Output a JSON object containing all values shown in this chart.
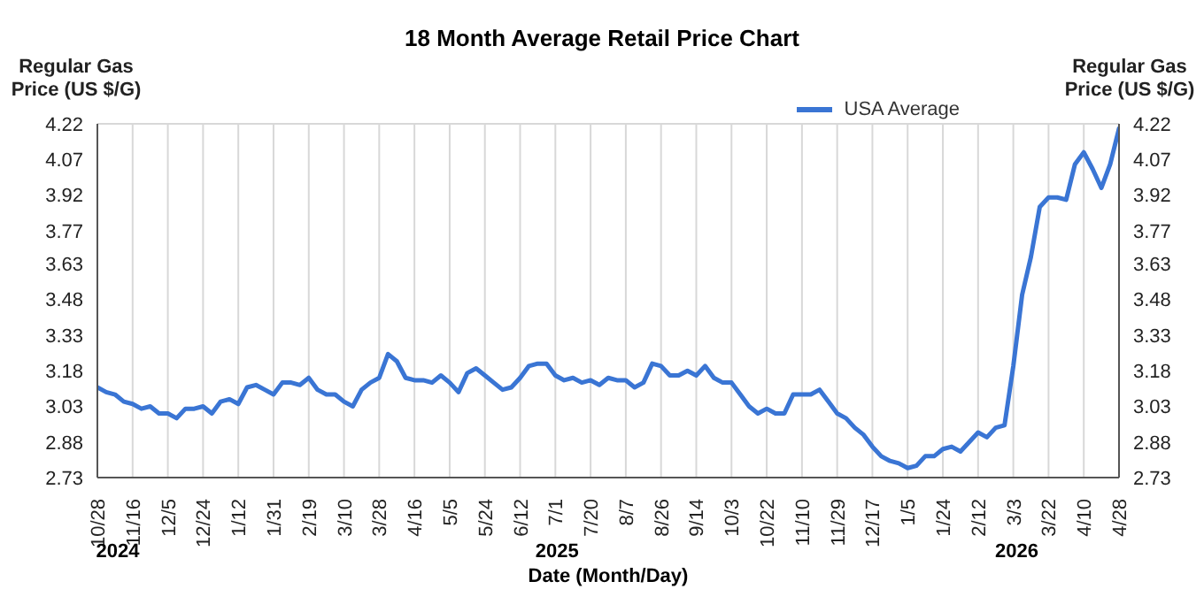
{
  "chart_data": {
    "type": "line",
    "title": "18 Month Average Retail Price Chart",
    "xlabel": "Date (Month/Day)",
    "ylabel": "Regular Gas Price (US $/G)",
    "y2label": "Regular Gas Price (US $/G)",
    "categories": [
      "10/28",
      null,
      null,
      null,
      "11/16",
      null,
      null,
      null,
      "12/5",
      null,
      null,
      null,
      "12/24",
      null,
      null,
      null,
      "1/12",
      null,
      null,
      null,
      "1/31",
      null,
      null,
      null,
      "2/19",
      null,
      null,
      null,
      "3/10",
      null,
      null,
      null,
      "3/28",
      null,
      null,
      null,
      "4/16",
      null,
      null,
      null,
      "5/5",
      null,
      null,
      null,
      "5/24",
      null,
      null,
      null,
      "6/12",
      null,
      null,
      null,
      "7/1",
      null,
      null,
      null,
      "7/20",
      null,
      null,
      null,
      "8/7",
      null,
      null,
      null,
      "8/26",
      null,
      null,
      null,
      "9/14",
      null,
      null,
      null,
      "10/3",
      null,
      null,
      null,
      "10/22",
      null,
      null,
      null,
      "11/10",
      null,
      null,
      null,
      "11/29",
      null,
      null,
      null,
      "12/17",
      null,
      null,
      null,
      "1/5",
      null,
      null,
      null,
      "1/24",
      null,
      null,
      null,
      "2/12",
      null,
      null,
      null,
      "3/3",
      null,
      null,
      null,
      "3/22",
      null,
      null,
      null,
      "4/10",
      null,
      null,
      null,
      "4/28"
    ],
    "series": [
      {
        "name": "USA Average",
        "color": "#3a75d4",
        "values": [
          3.11,
          3.09,
          3.08,
          3.05,
          3.04,
          3.02,
          3.03,
          3.0,
          3.0,
          2.98,
          3.02,
          3.02,
          3.03,
          3.0,
          3.05,
          3.06,
          3.04,
          3.11,
          3.12,
          3.1,
          3.08,
          3.13,
          3.13,
          3.12,
          3.15,
          3.1,
          3.08,
          3.08,
          3.05,
          3.03,
          3.1,
          3.13,
          3.15,
          3.25,
          3.22,
          3.15,
          3.14,
          3.14,
          3.13,
          3.16,
          3.13,
          3.09,
          3.17,
          3.19,
          3.16,
          3.13,
          3.1,
          3.11,
          3.15,
          3.2,
          3.21,
          3.21,
          3.16,
          3.14,
          3.15,
          3.13,
          3.14,
          3.12,
          3.15,
          3.14,
          3.14,
          3.11,
          3.13,
          3.21,
          3.2,
          3.16,
          3.16,
          3.18,
          3.16,
          3.2,
          3.15,
          3.13,
          3.13,
          3.08,
          3.03,
          3.0,
          3.02,
          3.0,
          3.0,
          3.08,
          3.08,
          3.08,
          3.1,
          3.05,
          3.0,
          2.98,
          2.94,
          2.91,
          2.86,
          2.82,
          2.8,
          2.79,
          2.77,
          2.78,
          2.82,
          2.82,
          2.85,
          2.86,
          2.84,
          2.88,
          2.92,
          2.9,
          2.94,
          2.95,
          3.2,
          3.5,
          3.66,
          3.87,
          3.91,
          3.91,
          3.9,
          4.05,
          4.1,
          4.03,
          3.95,
          4.05,
          4.2
        ]
      }
    ],
    "ylim": [
      2.73,
      4.22
    ],
    "yticks": [
      2.73,
      2.88,
      3.03,
      3.18,
      3.33,
      3.48,
      3.63,
      3.77,
      3.92,
      4.07,
      4.22
    ],
    "y2lim": [
      2.73,
      4.22
    ],
    "y2ticks": [
      2.73,
      2.88,
      3.03,
      3.18,
      3.33,
      3.48,
      3.63,
      3.77,
      3.92,
      4.07,
      4.22
    ],
    "annotations": [
      "2024",
      "2025",
      "2026"
    ],
    "grid": true,
    "legend": "top right",
    "marker": "none",
    "line_style": "solid"
  }
}
